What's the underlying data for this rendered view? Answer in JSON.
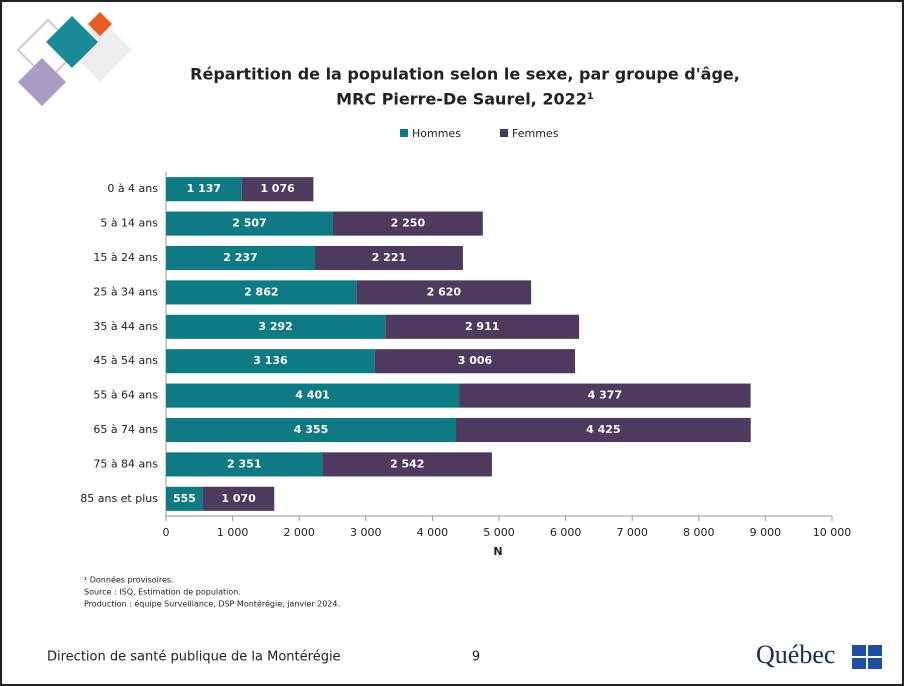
{
  "chart_data": {
    "type": "stacked-bar-horizontal",
    "title": [
      "Répartition de la population selon le sexe, par groupe d'âge,",
      "MRC Pierre-De Saurel, 2022¹"
    ],
    "categories": [
      "0 à 4 ans",
      "5 à 14 ans",
      "15 à 24 ans",
      "25 à 34 ans",
      "35 à 44 ans",
      "45 à 54 ans",
      "55 à 64 ans",
      "65 à 74 ans",
      "75 à 84 ans",
      "85 ans et plus"
    ],
    "series": [
      {
        "name": "Hommes",
        "color": "#0e7a83",
        "values": [
          1137,
          2507,
          2237,
          2862,
          3292,
          3136,
          4401,
          4355,
          2351,
          555
        ],
        "value_labels": [
          "1 137",
          "2 507",
          "2 237",
          "2 862",
          "3 292",
          "3 136",
          "4 401",
          "4 355",
          "2 351",
          "555"
        ]
      },
      {
        "name": "Femmes",
        "color": "#4e3a5e",
        "values": [
          1076,
          2250,
          2221,
          2620,
          2911,
          3006,
          4377,
          4425,
          2542,
          1070
        ],
        "value_labels": [
          "1 076",
          "2 250",
          "2 221",
          "2 620",
          "2 911",
          "3 006",
          "4 377",
          "4 425",
          "2 542",
          "1 070"
        ]
      }
    ],
    "xlabel": "N",
    "xlim": [
      0,
      10000
    ],
    "xticks": [
      0,
      {
        "value": 1000,
        "label": "1 000"
      },
      {
        "value": 2000,
        "label": "2 000"
      },
      {
        "value": 3000,
        "label": "3 000"
      },
      {
        "value": 4000,
        "label": "4 000"
      },
      {
        "value": 5000,
        "label": "5 000"
      },
      {
        "value": 6000,
        "label": "6 000"
      },
      {
        "value": 7000,
        "label": "7 000"
      },
      {
        "value": 8000,
        "label": "8 000"
      },
      {
        "value": 9000,
        "label": "9 000"
      },
      {
        "value": 10000,
        "label": "10 000"
      }
    ],
    "legend": "top",
    "notes": [
      "¹ Données provisoires.",
      "Source : ISQ, Estimation de population.",
      "Production : équipe Surveillance, DSP Montérégie, janvier 2024."
    ]
  },
  "slide": {
    "footer": "Direction de santé publique de la Montérégie",
    "page_number": 9,
    "logo": "Québec"
  }
}
